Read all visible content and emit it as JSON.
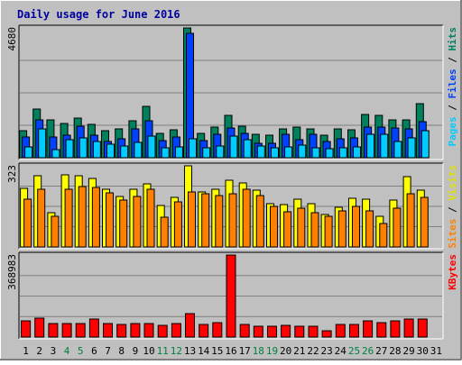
{
  "chart_data": {
    "type": "bar",
    "title": "Daily usage for June 2016",
    "categories": [
      "1",
      "2",
      "3",
      "4",
      "5",
      "6",
      "7",
      "8",
      "9",
      "10",
      "11",
      "12",
      "13",
      "14",
      "15",
      "16",
      "17",
      "18",
      "19",
      "20",
      "21",
      "22",
      "23",
      "24",
      "25",
      "26",
      "27",
      "28",
      "29",
      "30",
      "31"
    ],
    "weekend_days": [
      "4",
      "5",
      "11",
      "12",
      "18",
      "19",
      "25",
      "26"
    ],
    "panels": [
      {
        "id": "hits-files-pages",
        "ymax": 4680,
        "ymax_label": "4680",
        "axis_label_parts": [
          "Pages",
          " / ",
          "Files",
          " / ",
          "Hits"
        ],
        "axis_label_colors": [
          "#00ccff",
          "#000000",
          "#0040ff",
          "#000000",
          "#008060"
        ],
        "series": [
          {
            "name": "Hits",
            "color": "#00805c",
            "values": [
              984,
              1755,
              1358,
              1249,
              1421,
              1213,
              970,
              1049,
              1345,
              1840,
              878,
              1016,
              4680,
              875,
              1115,
              1524,
              1137,
              853,
              804,
              1047,
              1101,
              1047,
              797,
              1036,
              1001,
              1573,
              1528,
              1365,
              1365,
              1954,
              null
            ]
          },
          {
            "name": "Files",
            "color": "#0040ff",
            "values": [
              749,
              1353,
              733,
              813,
              1130,
              798,
              601,
              691,
              1036,
              1342,
              630,
              739,
              4475,
              607,
              858,
              1065,
              886,
              520,
              520,
              842,
              666,
              860,
              577,
              676,
              708,
              1107,
              1116,
              1066,
              1050,
              1316,
              null
            ]
          },
          {
            "name": "Pages",
            "color": "#00ccff",
            "values": [
              388,
              1049,
              285,
              653,
              701,
              580,
              475,
              435,
              541,
              766,
              362,
              405,
              683,
              364,
              422,
              796,
              660,
              411,
              343,
              389,
              453,
              352,
              327,
              347,
              402,
              838,
              843,
              589,
              709,
              973,
              null
            ]
          }
        ]
      },
      {
        "id": "visits-sites",
        "ymax": 323,
        "ymax_label": "323",
        "axis_label_parts": [
          "Sites",
          " / ",
          "Visits"
        ],
        "axis_label_colors": [
          "#ff8000",
          "#000000",
          "#e0e000"
        ],
        "series": [
          {
            "name": "Visits",
            "color": "#ffff00",
            "values": [
              235,
              284,
              138,
              286,
              285,
              273,
              230,
              200,
              230,
              253,
              164,
              197,
              323,
              218,
              230,
              266,
              255,
              226,
              174,
              169,
              191,
              172,
              130,
              159,
              195,
              190,
              122,
              188,
              280,
              225,
              null
            ]
          },
          {
            "name": "Sites",
            "color": "#ff8000",
            "values": [
              191,
              231,
              121,
              230,
              240,
              238,
              214,
              185,
              200,
              228,
              120,
              179,
              220,
              210,
              203,
              210,
              230,
              206,
              160,
              139,
              156,
              138,
              122,
              144,
              163,
              143,
              94,
              153,
              210,
              198,
              null
            ]
          }
        ]
      },
      {
        "id": "kbytes",
        "ymax": 368983,
        "ymax_label": "368983",
        "axis_label_parts": [
          "KBytes"
        ],
        "axis_label_colors": [
          "#ff0000"
        ],
        "series": [
          {
            "name": "KBytes",
            "color": "#ff0000",
            "values": [
              73000,
              86000,
              62000,
              62000,
              62000,
              81000,
              62000,
              57000,
              62000,
              62000,
              52000,
              62000,
              105000,
              57000,
              65000,
              368983,
              57000,
              47000,
              47000,
              52000,
              47000,
              47000,
              28000,
              57000,
              57000,
              73000,
              65000,
              73000,
              81000,
              81000,
              null
            ]
          }
        ]
      }
    ]
  }
}
